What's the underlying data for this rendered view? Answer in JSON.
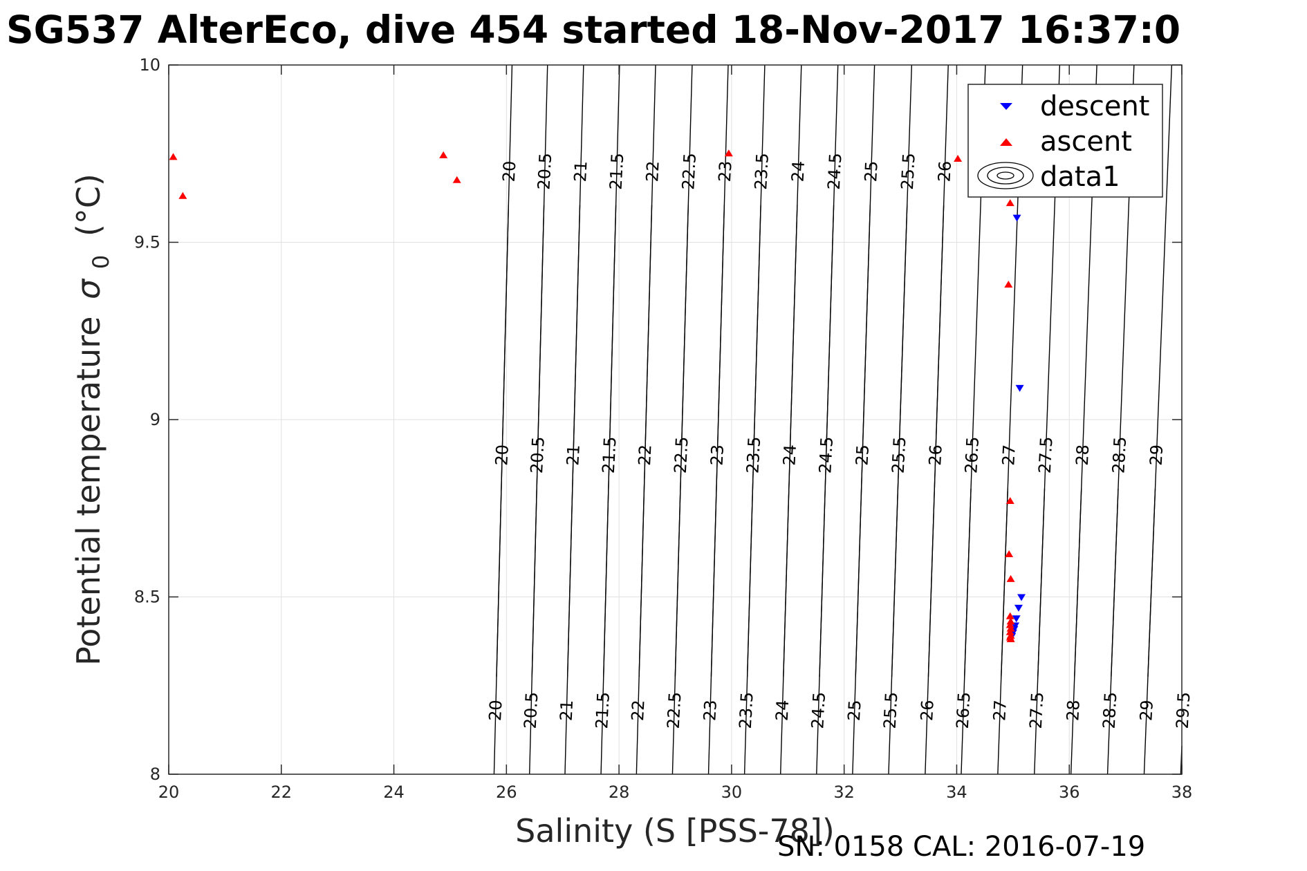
{
  "chart_data": {
    "type": "scatter",
    "title": "SG537 AlterEco, dive 454 started 18-Nov-2017 16:37:0",
    "xlabel": "Salinity (S [PSS-78])",
    "ylabel": "Potential temperature",
    "ylabel_symbol": "σ",
    "ylabel_subscript": "0",
    "ylabel_unit": "(°C)",
    "footer": "SN: 0158  CAL: 2016-07-19",
    "xlim": [
      20,
      38
    ],
    "ylim": [
      8,
      10
    ],
    "xticks": [
      "20",
      "22",
      "24",
      "26",
      "28",
      "30",
      "32",
      "34",
      "36",
      "38"
    ],
    "yticks": [
      "8",
      "8.5",
      "9",
      "9.5",
      "10"
    ],
    "grid": true,
    "legend_position": "top-right",
    "legend": [
      "descent",
      "ascent",
      "data1"
    ],
    "colors": {
      "descent": "#0000ff",
      "ascent": "#ff0000",
      "contour": "#000000",
      "grid": "#e0e0e0"
    },
    "series": [
      {
        "name": "descent",
        "marker": "triangle-down",
        "x": [
          35.07,
          35.12,
          35.15,
          35.1,
          35.06,
          35.04,
          35.02,
          35.0,
          34.98
        ],
        "y": [
          9.57,
          9.09,
          8.5,
          8.47,
          8.44,
          8.42,
          8.41,
          8.4,
          8.39
        ]
      },
      {
        "name": "ascent",
        "marker": "triangle-up",
        "x": [
          20.08,
          20.25,
          24.88,
          25.12,
          29.95,
          34.02,
          34.95,
          34.92,
          34.95,
          34.93,
          34.96,
          34.95,
          34.96,
          34.95,
          34.96,
          34.95,
          34.96,
          34.95,
          34.96
        ],
        "y": [
          9.74,
          9.63,
          9.745,
          9.675,
          9.75,
          9.735,
          9.61,
          9.38,
          8.77,
          8.62,
          8.55,
          8.445,
          8.43,
          8.42,
          8.41,
          8.4,
          8.39,
          8.385,
          8.38
        ]
      }
    ],
    "contours": {
      "name": "data1",
      "levels": [
        20,
        20.5,
        21,
        21.5,
        22,
        22.5,
        23,
        23.5,
        24,
        24.5,
        25,
        25.5,
        26,
        26.5,
        27,
        27.5,
        28,
        28.5,
        29,
        29.5
      ],
      "x_at_t8": [
        25.78,
        26.41,
        27.04,
        27.68,
        28.31,
        28.95,
        29.59,
        30.23,
        30.87,
        31.51,
        32.15,
        32.79,
        33.44,
        34.08,
        34.73,
        35.38,
        36.03,
        36.68,
        37.33,
        37.98
      ],
      "x_at_t10": [
        26.1,
        26.73,
        27.37,
        28.01,
        28.65,
        29.3,
        29.94,
        30.59,
        31.24,
        31.89,
        32.54,
        33.2,
        33.85,
        34.51,
        35.17,
        35.83,
        36.49,
        37.15,
        37.82,
        38.48
      ],
      "label_rows": {
        "top": [
          "20",
          "20.5",
          "21",
          "21.5",
          "22",
          "22.5",
          "23",
          "23.5",
          "24",
          "24.5",
          "25",
          "25.5",
          "26"
        ],
        "middle": [
          "20",
          "20.5",
          "21",
          "21.5",
          "22",
          "22.5",
          "23",
          "23.5",
          "24",
          "24.5",
          "25",
          "25.5",
          "26",
          "26.5",
          "27",
          "27.5",
          "28",
          "28.5",
          "29"
        ],
        "bottom": [
          "20",
          "20.5",
          "21",
          "21.5",
          "22",
          "22.5",
          "23",
          "23.5",
          "24",
          "24.5",
          "25",
          "25.5",
          "26",
          "26.5",
          "27",
          "27.5",
          "28",
          "28.5",
          "29",
          "29.5"
        ]
      }
    }
  }
}
